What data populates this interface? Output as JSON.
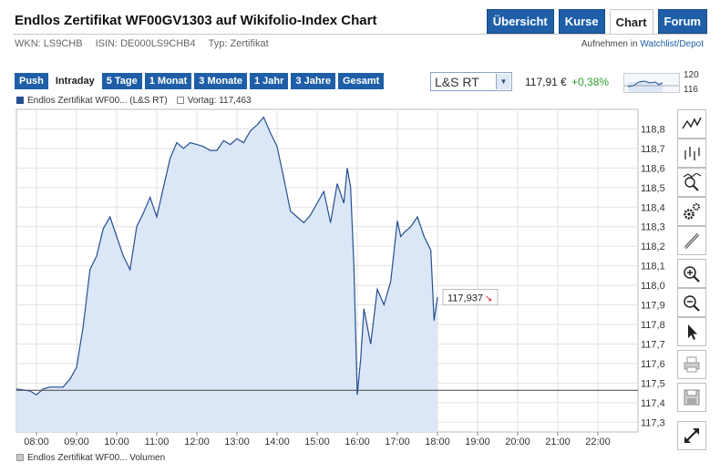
{
  "header": {
    "title": "Endlos Zertifikat WF00GV1303 auf Wikifolio-Index Chart",
    "wkn": "WKN: LS9CHB",
    "isin": "ISIN: DE000LS9CHB4",
    "typ": "Typ: Zertifikat",
    "watchlist_prefix": "Aufnehmen in",
    "watchlist_link": "Watchlist/Depot"
  },
  "nav": [
    {
      "label": "Übersicht",
      "active": false
    },
    {
      "label": "Kurse",
      "active": false
    },
    {
      "label": "Chart",
      "active": true
    },
    {
      "label": "Forum",
      "active": false
    }
  ],
  "range_tabs": [
    {
      "label": "Push",
      "active": false
    },
    {
      "label": "Intraday",
      "active": true
    },
    {
      "label": "5 Tage",
      "active": false
    },
    {
      "label": "1 Monat",
      "active": false
    },
    {
      "label": "3 Monate",
      "active": false
    },
    {
      "label": "1 Jahr",
      "active": false
    },
    {
      "label": "3 Jahre",
      "active": false
    },
    {
      "label": "Gesamt",
      "active": false
    }
  ],
  "exchange": {
    "selected": "L&S RT"
  },
  "quote": {
    "price": "117,91 €",
    "change": "+0,38%",
    "change_color": "#2e9e2e"
  },
  "mini_chart": {
    "high_label": "120",
    "low_label": "116"
  },
  "legend": {
    "series": "Endlos Zertifikat WF00... (L&S RT)",
    "previous": "Vortag: 117,463",
    "volume": "Endlos Zertifikat WF00... Volumen"
  },
  "tools": [
    {
      "name": "line-chart-icon"
    },
    {
      "name": "ohlc-chart-icon"
    },
    {
      "name": "indicator-search-icon"
    },
    {
      "name": "settings-gears-icon"
    },
    {
      "name": "draw-pencil-icon"
    },
    {
      "name": "zoom-in-icon"
    },
    {
      "name": "zoom-out-icon"
    },
    {
      "name": "pointer-arrow-icon"
    },
    {
      "name": "print-icon"
    },
    {
      "name": "save-disk-icon"
    },
    {
      "name": "expand-icon"
    }
  ],
  "chart_data": {
    "type": "area",
    "title": "",
    "xlabel": "",
    "ylabel": "",
    "ylim": [
      117.25,
      118.9
    ],
    "xlim": [
      "07:30",
      "23:00"
    ],
    "x_ticks": [
      "08:00",
      "09:00",
      "10:00",
      "11:00",
      "12:00",
      "13:00",
      "14:00",
      "15:00",
      "16:00",
      "17:00",
      "18:00",
      "19:00",
      "20:00",
      "21:00",
      "22:00"
    ],
    "y_ticks": [
      "117,3",
      "117,4",
      "117,5",
      "117,6",
      "117,7",
      "117,8",
      "117,9",
      "118,0",
      "118,1",
      "118,2",
      "118,3",
      "118,4",
      "118,5",
      "118,6",
      "118,7",
      "118,8"
    ],
    "grid": true,
    "series": [
      {
        "name": "Endlos Zertifikat WF00... (L&S RT)",
        "color": "#244f90",
        "fill": "#dbe7f7",
        "x": [
          "07:30",
          "07:50",
          "08:00",
          "08:10",
          "08:20",
          "08:40",
          "08:50",
          "09:00",
          "09:10",
          "09:20",
          "09:30",
          "09:40",
          "09:50",
          "10:00",
          "10:10",
          "10:20",
          "10:30",
          "10:40",
          "10:50",
          "11:00",
          "11:10",
          "11:20",
          "11:30",
          "11:40",
          "11:50",
          "12:00",
          "12:10",
          "12:20",
          "12:30",
          "12:40",
          "12:50",
          "13:00",
          "13:10",
          "13:20",
          "13:30",
          "13:40",
          "13:50",
          "14:00",
          "14:10",
          "14:20",
          "14:30",
          "14:40",
          "14:50",
          "15:00",
          "15:10",
          "15:20",
          "15:30",
          "15:40",
          "15:45",
          "15:50",
          "15:55",
          "16:00",
          "16:05",
          "16:10",
          "16:20",
          "16:30",
          "16:40",
          "16:50",
          "17:00",
          "17:05",
          "17:10",
          "17:20",
          "17:30",
          "17:40",
          "17:50",
          "17:55",
          "18:00"
        ],
        "y": [
          117.47,
          117.46,
          117.44,
          117.47,
          117.48,
          117.48,
          117.52,
          117.58,
          117.79,
          118.08,
          118.15,
          118.29,
          118.35,
          118.25,
          118.15,
          118.08,
          118.3,
          118.37,
          118.45,
          118.35,
          118.5,
          118.65,
          118.73,
          118.7,
          118.73,
          118.72,
          118.71,
          118.69,
          118.69,
          118.74,
          118.72,
          118.75,
          118.73,
          118.79,
          118.82,
          118.86,
          118.78,
          118.71,
          118.55,
          118.38,
          118.35,
          118.32,
          118.36,
          118.42,
          118.48,
          118.32,
          118.52,
          118.42,
          118.6,
          118.5,
          118.1,
          117.44,
          117.62,
          117.88,
          117.7,
          117.98,
          117.9,
          118.02,
          118.33,
          118.25,
          118.27,
          118.3,
          118.35,
          118.25,
          118.18,
          117.82,
          117.94
        ]
      }
    ],
    "previous_close": 117.463,
    "last_value_label": "117,937"
  }
}
